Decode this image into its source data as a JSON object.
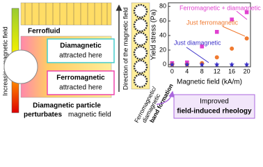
{
  "diagram": {
    "field_axis": "Increasing magnetic field",
    "ferrofluid": "Ferrofluid",
    "dia_box": {
      "title": "Diamagnetic",
      "text": "attracted here"
    },
    "ferro_box": {
      "title": "Ferromagnetic",
      "text": "attracted here"
    },
    "caption": [
      "Diamagnetic particle",
      "perturbates",
      "magnetic field"
    ],
    "direction": "Direction of the magnetic field",
    "band": [
      "Ferromagnetic/",
      "diamagnetic",
      "band formation"
    ],
    "result": [
      "Improved",
      "field-induced rheology"
    ]
  },
  "chart_data": {
    "type": "scatter",
    "y_label": "Yield stress (Pa)",
    "x_label": "Magnetic field (kA/m)",
    "x": [
      0,
      4,
      8,
      12,
      16,
      20
    ],
    "series": [
      {
        "name": "Ferromagnetic + diamagnetic",
        "color": "#e040d0",
        "marker": "square",
        "values": [
          2,
          3,
          25,
          45,
          62,
          72
        ]
      },
      {
        "name": "Just ferromagnetic",
        "color": "#f07a30",
        "marker": "circle",
        "values": [
          0,
          0,
          2,
          10,
          22,
          36
        ]
      },
      {
        "name": "Just diamagnetic",
        "color": "#3a30c8",
        "marker": "star",
        "values": [
          0,
          0,
          0,
          0,
          0,
          0
        ]
      }
    ],
    "xlim": [
      -1,
      21
    ],
    "ylim": [
      -3,
      85
    ],
    "xticks": [
      0,
      4,
      8,
      12,
      16,
      20
    ],
    "yticks": [
      0,
      20,
      40,
      60,
      80
    ]
  }
}
